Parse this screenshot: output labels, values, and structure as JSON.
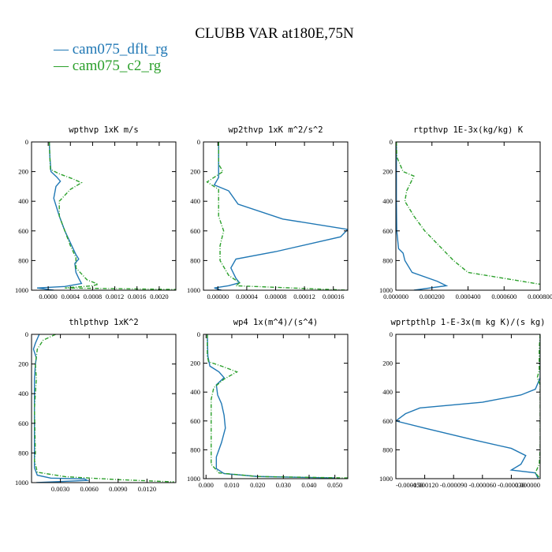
{
  "chart_data": {
    "title": "CLUBB VAR at180E,75N",
    "legend": [
      {
        "label": "— cam075_dflt_rg",
        "color": "#1f77b4",
        "dash": "solid"
      },
      {
        "label": "— cam075_c2_rg",
        "color": "#2ca02c",
        "dash": "dashed"
      }
    ],
    "panels": [
      {
        "type": "line",
        "title": "wpthvp   1xK m/s",
        "xlim": [
          -0.0003,
          0.0023
        ],
        "ylim": [
          0,
          1000
        ],
        "xticks": [
          0,
          0.0004,
          0.0008,
          0.0012,
          0.0016,
          0.002
        ],
        "xtick_labels": [
          "0.0000",
          "0.0004",
          "0.0008",
          "0.0012",
          "0.0016",
          "0.0020"
        ],
        "yticks": [
          0,
          200,
          400,
          600,
          800,
          1000
        ],
        "ytick_labels": [
          "0",
          "200",
          "400",
          "600",
          "800",
          "1000"
        ],
        "series": [
          {
            "name": "cam075_dflt_rg",
            "points": [
              [
                2e-05,
                0
              ],
              [
                3e-05,
                100
              ],
              [
                5e-05,
                200
              ],
              [
                0.00015,
                235
              ],
              [
                0.00022,
                265
              ],
              [
                0.00014,
                300
              ],
              [
                0.0001,
                380
              ],
              [
                0.0002,
                500
              ],
              [
                0.0003,
                600
              ],
              [
                0.00045,
                720
              ],
              [
                0.0005,
                760
              ],
              [
                0.00055,
                790
              ],
              [
                0.00048,
                820
              ],
              [
                0.0005,
                880
              ],
              [
                0.00055,
                920
              ],
              [
                0.0006,
                955
              ],
              [
                0.0003,
                975
              ],
              [
                -0.0002,
                985
              ],
              [
                0.0001,
                1000
              ]
            ]
          },
          {
            "name": "cam075_c2_rg",
            "points": [
              [
                2e-05,
                0
              ],
              [
                3e-05,
                100
              ],
              [
                4e-05,
                185
              ],
              [
                0.0002,
                215
              ],
              [
                0.00045,
                250
              ],
              [
                0.0006,
                275
              ],
              [
                0.0004,
                320
              ],
              [
                0.0002,
                400
              ],
              [
                0.0002,
                500
              ],
              [
                0.0003,
                600
              ],
              [
                0.0004,
                700
              ],
              [
                0.0005,
                780
              ],
              [
                0.0005,
                850
              ],
              [
                0.0007,
                930
              ],
              [
                0.0009,
                960
              ],
              [
                0.0008,
                970
              ],
              [
                0.0003,
                985
              ],
              [
                0.0023,
                995
              ]
            ]
          }
        ]
      },
      {
        "type": "line",
        "title": "wp2thvp   1xK m^2/s^2",
        "xlim": [
          -2e-05,
          0.00018
        ],
        "ylim": [
          0,
          1000
        ],
        "xticks": [
          0,
          4e-05,
          8e-05,
          0.00012,
          0.00016
        ],
        "xtick_labels": [
          "0.00000",
          "0.00004",
          "0.00008",
          "0.00012",
          "0.00016"
        ],
        "yticks": [
          0,
          200,
          400,
          600,
          800,
          1000
        ],
        "ytick_labels": [
          "0",
          "200",
          "400",
          "600",
          "800",
          "1000"
        ],
        "series": [
          {
            "name": "cam075_dflt_rg",
            "points": [
              [
                1e-06,
                0
              ],
              [
                1e-06,
                150
              ],
              [
                1e-06,
                240
              ],
              [
                -5e-06,
                290
              ],
              [
                1.5e-05,
                330
              ],
              [
                2.8e-05,
                420
              ],
              [
                9e-05,
                520
              ],
              [
                0.00018,
                590
              ],
              [
                0.00017,
                640
              ],
              [
                8e-05,
                740
              ],
              [
                2.5e-05,
                790
              ],
              [
                1.8e-05,
                850
              ],
              [
                2.5e-05,
                920
              ],
              [
                3e-05,
                950
              ],
              [
                1.5e-05,
                970
              ],
              [
                -5e-06,
                985
              ],
              [
                5e-06,
                1000
              ]
            ]
          },
          {
            "name": "cam075_c2_rg",
            "points": [
              [
                1e-06,
                0
              ],
              [
                1e-06,
                150
              ],
              [
                7e-06,
                200
              ],
              [
                -1.5e-05,
                270
              ],
              [
                1e-06,
                320
              ],
              [
                1e-06,
                500
              ],
              [
                8e-06,
                600
              ],
              [
                3e-06,
                700
              ],
              [
                3e-06,
                800
              ],
              [
                1.5e-05,
                900
              ],
              [
                3e-05,
                950
              ],
              [
                2.5e-05,
                970
              ],
              [
                0.00018,
                1000
              ]
            ]
          }
        ]
      },
      {
        "type": "line",
        "title": "rtpthvp   1E-3x(kg/kg) K",
        "xlim": [
          0,
          0.0008
        ],
        "ylim": [
          0,
          1000
        ],
        "xticks": [
          0,
          0.0002,
          0.0004,
          0.0006,
          0.0008
        ],
        "xtick_labels": [
          "0.000000",
          "0.000200",
          "0.000400",
          "0.000600",
          "0.000800"
        ],
        "yticks": [
          0,
          200,
          400,
          600,
          800,
          1000
        ],
        "ytick_labels": [
          "0",
          "200",
          "400",
          "600",
          "800",
          "1000"
        ],
        "series": [
          {
            "name": "cam075_dflt_rg",
            "points": [
              [
                3e-06,
                0
              ],
              [
                3e-06,
                200
              ],
              [
                3e-06,
                400
              ],
              [
                5e-06,
                600
              ],
              [
                1.5e-05,
                720
              ],
              [
                4e-05,
                750
              ],
              [
                5e-05,
                800
              ],
              [
                9e-05,
                880
              ],
              [
                0.00023,
                940
              ],
              [
                0.00028,
                970
              ],
              [
                0.0001,
                1000
              ]
            ]
          },
          {
            "name": "cam075_c2_rg",
            "points": [
              [
                3e-06,
                0
              ],
              [
                5e-06,
                100
              ],
              [
                4e-05,
                200
              ],
              [
                0.0001,
                230
              ],
              [
                8e-05,
                280
              ],
              [
                6e-05,
                330
              ],
              [
                5e-05,
                400
              ],
              [
                0.0001,
                500
              ],
              [
                0.00016,
                600
              ],
              [
                0.00024,
                700
              ],
              [
                0.00032,
                800
              ],
              [
                0.0004,
                880
              ],
              [
                0.00065,
                930
              ],
              [
                0.0008,
                960
              ]
            ]
          }
        ]
      },
      {
        "type": "line",
        "title": "thlpthvp   1xK^2",
        "xlim": [
          0,
          0.015
        ],
        "ylim": [
          0,
          1000
        ],
        "xticks": [
          0.003,
          0.006,
          0.009,
          0.012
        ],
        "xtick_labels": [
          "0.0030",
          "0.0060",
          "0.0090",
          "0.0120"
        ],
        "yticks": [
          0,
          200,
          400,
          600,
          800,
          1000
        ],
        "ytick_labels": [
          "0",
          "200",
          "400",
          "600",
          "800",
          "1000"
        ],
        "series": [
          {
            "name": "cam075_dflt_rg",
            "points": [
              [
                0.0008,
                0
              ],
              [
                0.0004,
                60
              ],
              [
                0.0002,
                100
              ],
              [
                0.0005,
                160
              ],
              [
                0.0004,
                200
              ],
              [
                0.0003,
                300
              ],
              [
                0.0003,
                600
              ],
              [
                0.0003,
                800
              ],
              [
                0.0003,
                900
              ],
              [
                0.0006,
                950
              ],
              [
                0.002,
                970
              ],
              [
                0.0055,
                975
              ],
              [
                0.0058,
                985
              ],
              [
                0.0005,
                1000
              ]
            ]
          },
          {
            "name": "cam075_c2_rg",
            "points": [
              [
                0.0025,
                0
              ],
              [
                0.0012,
                40
              ],
              [
                0.0006,
                100
              ],
              [
                0.0004,
                200
              ],
              [
                0.0005,
                300
              ],
              [
                0.0003,
                500
              ],
              [
                0.0004,
                800
              ],
              [
                0.0003,
                850
              ],
              [
                0.0006,
                930
              ],
              [
                0.0035,
                960
              ],
              [
                0.009,
                980
              ],
              [
                0.0148,
                995
              ]
            ]
          }
        ]
      },
      {
        "type": "line",
        "title": "wp4   1x(m^4)/(s^4)",
        "xlim": [
          -0.001,
          0.055
        ],
        "ylim": [
          0,
          1000
        ],
        "xticks": [
          0,
          0.01,
          0.02,
          0.03,
          0.04,
          0.05
        ],
        "xtick_labels": [
          "0.000",
          "0.010",
          "0.020",
          "0.030",
          "0.040",
          "0.050"
        ],
        "yticks": [
          0,
          200,
          400,
          600,
          800,
          1000
        ],
        "ytick_labels": [
          "0",
          "200",
          "400",
          "600",
          "800",
          "1000"
        ],
        "series": [
          {
            "name": "cam075_dflt_rg",
            "points": [
              [
                0.0005,
                0
              ],
              [
                0.0007,
                150
              ],
              [
                0.0015,
                220
              ],
              [
                0.005,
                260
              ],
              [
                0.007,
                300
              ],
              [
                0.004,
                350
              ],
              [
                0.0045,
                420
              ],
              [
                0.006,
                480
              ],
              [
                0.007,
                560
              ],
              [
                0.0075,
                650
              ],
              [
                0.006,
                750
              ],
              [
                0.004,
                850
              ],
              [
                0.004,
                930
              ],
              [
                0.007,
                965
              ],
              [
                0.02,
                985
              ],
              [
                0.05,
                995
              ]
            ]
          },
          {
            "name": "cam075_c2_rg",
            "points": [
              [
                0.0005,
                0
              ],
              [
                0.0005,
                150
              ],
              [
                0.001,
                190
              ],
              [
                0.006,
                220
              ],
              [
                0.012,
                260
              ],
              [
                0.007,
                310
              ],
              [
                0.003,
                370
              ],
              [
                0.002,
                450
              ],
              [
                0.002,
                600
              ],
              [
                0.002,
                700
              ],
              [
                0.002,
                800
              ],
              [
                0.002,
                900
              ],
              [
                0.005,
                960
              ],
              [
                0.02,
                985
              ],
              [
                0.055,
                995
              ]
            ]
          }
        ]
      },
      {
        "type": "line",
        "title": "wprtpthlp   1-E-3x(m kg K)/(s kg)",
        "xlim": [
          -0.00015,
          0
        ],
        "ylim": [
          0,
          1000
        ],
        "xticks": [
          -0.00015,
          -0.00012,
          -9e-05,
          -6e-05,
          -3e-05,
          0
        ],
        "xtick_labels": [
          "-0.000150",
          "-0.000120",
          "-0.000090",
          "-0.000060",
          "-0.000030",
          "0.000000"
        ],
        "yticks": [
          0,
          200,
          400,
          600,
          800,
          1000
        ],
        "ytick_labels": [
          "0",
          "200",
          "400",
          "600",
          "800",
          "1000"
        ],
        "series": [
          {
            "name": "cam075_dflt_rg",
            "points": [
              [
                0,
                0
              ],
              [
                0,
                300
              ],
              [
                -5e-06,
                380
              ],
              [
                -2e-05,
                420
              ],
              [
                -6e-05,
                470
              ],
              [
                -0.000125,
                510
              ],
              [
                -0.00014,
                550
              ],
              [
                -0.00015,
                600
              ],
              [
                -0.00012,
                650
              ],
              [
                -7e-05,
                730
              ],
              [
                -3e-05,
                790
              ],
              [
                -1.5e-05,
                840
              ],
              [
                -2e-05,
                900
              ],
              [
                -3e-05,
                940
              ],
              [
                -5e-06,
                960
              ],
              [
                -2e-06,
                1000
              ]
            ]
          },
          {
            "name": "cam075_c2_rg",
            "points": [
              [
                0,
                0
              ],
              [
                -1e-06,
                100
              ],
              [
                -1e-06,
                250
              ],
              [
                -3e-06,
                300
              ],
              [
                0,
                350
              ],
              [
                0,
                800
              ],
              [
                -1e-06,
                900
              ],
              [
                -5e-06,
                960
              ],
              [
                0,
                1000
              ]
            ]
          }
        ]
      }
    ]
  }
}
